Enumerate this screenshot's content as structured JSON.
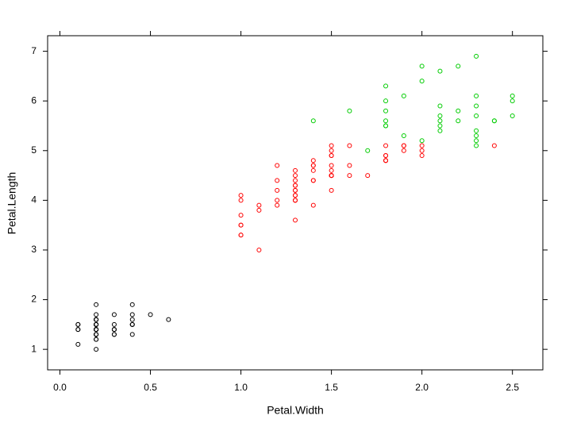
{
  "chart_data": {
    "type": "scatter",
    "xlabel": "Petal.Width",
    "ylabel": "Petal.Length",
    "xlim": [
      -0.068,
      2.668
    ],
    "ylim": [
      0.587,
      7.313
    ],
    "xticks": [
      {
        "value": 0,
        "label": "0.0"
      },
      0.5,
      {
        "value": 1,
        "label": "1.0"
      },
      1.5,
      {
        "value": 2,
        "label": "2.0"
      },
      2.5
    ],
    "yticks": [
      1,
      2,
      3,
      4,
      5,
      6,
      7
    ],
    "series": [
      {
        "color": "#000000",
        "x": [
          0.2,
          0.2,
          0.2,
          0.2,
          0.2,
          0.4,
          0.3,
          0.2,
          0.2,
          0.1,
          0.2,
          0.2,
          0.1,
          0.1,
          0.2,
          0.4,
          0.4,
          0.3,
          0.3,
          0.3,
          0.2,
          0.4,
          0.2,
          0.5,
          0.2,
          0.2,
          0.4,
          0.2,
          0.2,
          0.2,
          0.2,
          0.4,
          0.1,
          0.2,
          0.2,
          0.2,
          0.2,
          0.1,
          0.2,
          0.2,
          0.3,
          0.3,
          0.2,
          0.6,
          0.4,
          0.3,
          0.2,
          0.2,
          0.2,
          0.2
        ],
        "values": [
          1.4,
          1.4,
          1.3,
          1.5,
          1.4,
          1.7,
          1.4,
          1.5,
          1.4,
          1.5,
          1.5,
          1.6,
          1.4,
          1.1,
          1.2,
          1.5,
          1.3,
          1.4,
          1.7,
          1.5,
          1.7,
          1.5,
          1.0,
          1.7,
          1.9,
          1.6,
          1.6,
          1.5,
          1.4,
          1.6,
          1.6,
          1.5,
          1.5,
          1.4,
          1.5,
          1.2,
          1.3,
          1.4,
          1.3,
          1.5,
          1.3,
          1.3,
          1.3,
          1.6,
          1.9,
          1.4,
          1.6,
          1.4,
          1.5,
          1.4
        ]
      },
      {
        "color": "#ff0000",
        "x": [
          1.4,
          1.5,
          1.5,
          1.3,
          1.5,
          1.3,
          1.6,
          1.0,
          1.3,
          1.4,
          1.0,
          1.5,
          1.0,
          1.4,
          1.3,
          1.4,
          1.5,
          1.0,
          1.5,
          1.1,
          1.8,
          1.3,
          1.5,
          1.2,
          1.3,
          1.4,
          1.4,
          1.5,
          1.0,
          1.1,
          1.0,
          1.2,
          1.6,
          1.5,
          1.6,
          1.5,
          1.3,
          1.3,
          1.3,
          1.2,
          1.4,
          1.2,
          1.0,
          1.3,
          1.2,
          1.3,
          1.3,
          1.1,
          1.3,
          1.9,
          1.7,
          2.0,
          2.0,
          2.4,
          1.5,
          2.0,
          1.8,
          1.8,
          1.8,
          1.5,
          1.8,
          1.9,
          1.9,
          1.8
        ],
        "values": [
          4.7,
          4.5,
          4.9,
          4.0,
          4.6,
          4.5,
          4.7,
          3.3,
          4.6,
          3.9,
          3.5,
          4.2,
          4.0,
          4.7,
          3.6,
          4.4,
          4.5,
          4.1,
          4.5,
          3.9,
          4.8,
          4.0,
          4.9,
          4.7,
          4.3,
          4.4,
          4.8,
          4.5,
          3.5,
          3.8,
          3.7,
          3.9,
          5.1,
          4.5,
          4.5,
          4.7,
          4.4,
          4.1,
          4.0,
          4.4,
          4.6,
          4.0,
          3.3,
          4.2,
          4.2,
          4.2,
          4.3,
          3.0,
          4.1,
          5.1,
          4.5,
          5.1,
          5.0,
          5.1,
          5.0,
          4.9,
          4.9,
          4.8,
          4.9,
          5.1,
          4.8,
          5.1,
          5.0,
          5.1
        ]
      },
      {
        "color": "#00cc00",
        "x": [
          2.5,
          2.1,
          1.8,
          2.2,
          2.1,
          1.8,
          1.8,
          2.5,
          1.9,
          2.1,
          2.3,
          1.8,
          2.2,
          2.3,
          2.3,
          2.0,
          2.1,
          1.8,
          2.1,
          1.6,
          1.9,
          2.0,
          2.2,
          1.4,
          2.3,
          2.4,
          1.8,
          2.1,
          2.4,
          2.3,
          2.3,
          2.5,
          2.3,
          2.0,
          2.3,
          1.7
        ],
        "values": [
          6.0,
          5.9,
          5.6,
          5.8,
          6.6,
          6.3,
          5.8,
          6.1,
          5.3,
          5.5,
          5.3,
          5.5,
          6.7,
          6.9,
          5.7,
          6.7,
          5.7,
          6.0,
          5.6,
          5.8,
          6.1,
          6.4,
          5.6,
          5.6,
          6.1,
          5.6,
          5.5,
          5.4,
          5.6,
          5.1,
          5.9,
          5.7,
          5.2,
          5.2,
          5.4,
          5.0
        ]
      }
    ]
  }
}
